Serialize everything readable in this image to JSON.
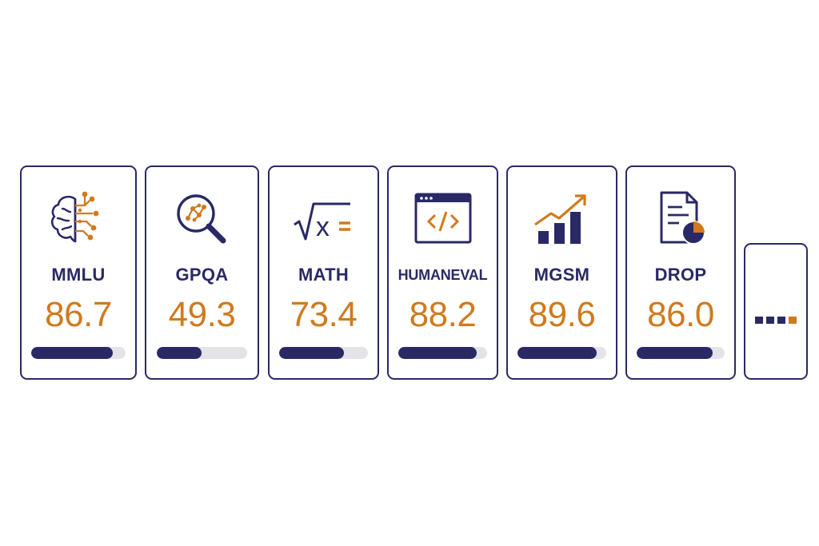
{
  "colors": {
    "primary": "#2a2966",
    "accent": "#d07a1d",
    "track": "#e3e3e8"
  },
  "benchmarks": [
    {
      "label": "MMLU",
      "score": "86.7",
      "progress": 0.867,
      "icon": "brain-circuit-icon"
    },
    {
      "label": "GPQA",
      "score": "49.3",
      "progress": 0.493,
      "icon": "magnifier-graph-icon"
    },
    {
      "label": "MATH",
      "score": "73.4",
      "progress": 0.734,
      "icon": "sqrt-x-equals-icon"
    },
    {
      "label": "HUMANEVAL",
      "score": "88.2",
      "progress": 0.882,
      "icon": "code-window-icon"
    },
    {
      "label": "MGSM",
      "score": "89.6",
      "progress": 0.896,
      "icon": "bar-chart-trend-icon"
    },
    {
      "label": "DROP",
      "score": "86.0",
      "progress": 0.86,
      "icon": "document-pie-icon"
    }
  ],
  "more_card": {
    "icon": "ellipsis-dots-icon"
  }
}
